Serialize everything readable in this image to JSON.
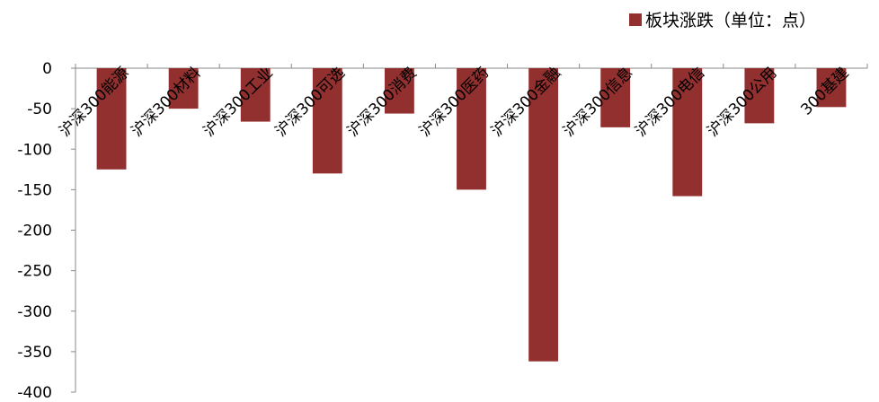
{
  "chart_data": {
    "type": "bar",
    "categories": [
      "沪深300能源",
      "沪深300材料",
      "沪深300工业",
      "沪深300可选",
      "沪深300消费",
      "沪深300医药",
      "沪深300金融",
      "沪深300信息",
      "沪深300电信",
      "沪深300公用",
      "300基建"
    ],
    "series": [
      {
        "name": "板块涨跌（单位：点）",
        "values": [
          -125,
          -50,
          -66,
          -130,
          -56,
          -150,
          -362,
          -73,
          -158,
          -68,
          -48
        ]
      }
    ],
    "ylim": [
      -400,
      0
    ],
    "yticks": [
      0,
      -50,
      -100,
      -150,
      -200,
      -250,
      -300,
      -350,
      -400
    ],
    "colors": {
      "bar": "#922f2f",
      "axis": "#888888"
    },
    "legend_position": "top-right",
    "grid": false
  }
}
